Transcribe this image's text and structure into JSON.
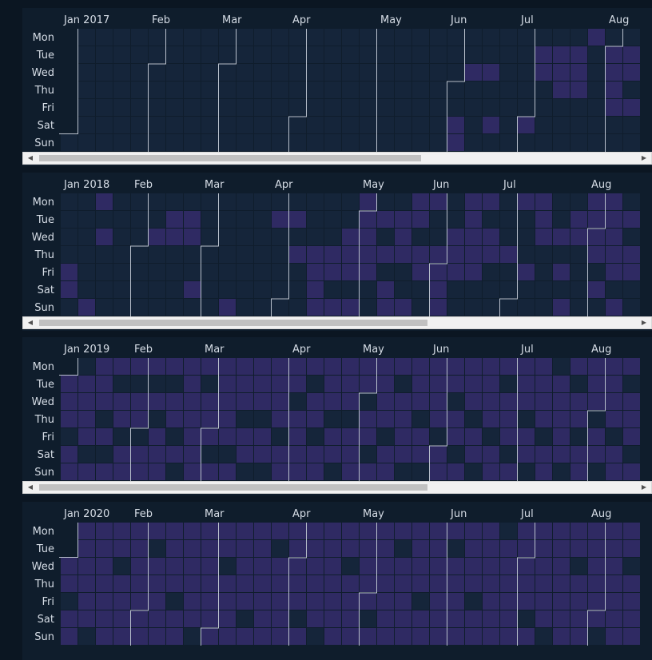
{
  "weekday_labels": [
    "Mon",
    "Tue",
    "Wed",
    "Thu",
    "Fri",
    "Sat",
    "Sun"
  ],
  "colors": {
    "empty": "#15253a",
    "filled": "#2f2a63",
    "background": "#0f1d2c",
    "boundary": "#b8c0cc"
  },
  "icons": {
    "scroll_left": "triangle-left",
    "scroll_right": "triangle-right"
  },
  "chart_data": [
    {
      "type": "heatmap",
      "year": 2017,
      "start_weekday": 6,
      "visible_weeks": 33,
      "month_labels": [
        "Jan 2017",
        "Feb",
        "Mar",
        "Apr",
        "May",
        "Jun",
        "Jul",
        "Aug"
      ],
      "active_dates": [
        "2017-06-03",
        "2017-06-04",
        "2017-06-07",
        "2017-06-14",
        "2017-06-17",
        "2017-07-01",
        "2017-07-04",
        "2017-07-05",
        "2017-07-11",
        "2017-07-12",
        "2017-07-13",
        "2017-07-18",
        "2017-07-19",
        "2017-07-20",
        "2017-07-24",
        "2017-08-01",
        "2017-08-02",
        "2017-08-03",
        "2017-08-04",
        "2017-08-08",
        "2017-08-09",
        "2017-08-11",
        "2017-08-15",
        "2017-08-16",
        "2017-08-18"
      ]
    },
    {
      "type": "heatmap",
      "year": 2018,
      "start_weekday": 0,
      "visible_weeks": 33,
      "month_labels": [
        "Jan 2018",
        "Feb",
        "Mar",
        "Apr",
        "May",
        "Jun",
        "Jul",
        "Aug"
      ],
      "active_dates": [
        "2018-01-05",
        "2018-01-06",
        "2018-01-14",
        "2018-01-15",
        "2018-01-17",
        "2018-02-07",
        "2018-02-13",
        "2018-02-14",
        "2018-02-20",
        "2018-02-21",
        "2018-02-24",
        "2018-03-11",
        "2018-03-27",
        "2018-04-03",
        "2018-04-05",
        "2018-04-12",
        "2018-04-13",
        "2018-04-14",
        "2018-04-15",
        "2018-04-19",
        "2018-04-20",
        "2018-04-22",
        "2018-04-25",
        "2018-04-26",
        "2018-04-27",
        "2018-04-29",
        "2018-04-30",
        "2018-05-01",
        "2018-05-02",
        "2018-05-03",
        "2018-05-04",
        "2018-05-08",
        "2018-05-10",
        "2018-05-12",
        "2018-05-13",
        "2018-05-15",
        "2018-05-16",
        "2018-05-17",
        "2018-05-20",
        "2018-05-21",
        "2018-05-22",
        "2018-05-24",
        "2018-05-25",
        "2018-05-28",
        "2018-05-31",
        "2018-06-01",
        "2018-06-02",
        "2018-06-03",
        "2018-06-06",
        "2018-06-07",
        "2018-06-08",
        "2018-06-11",
        "2018-06-12",
        "2018-06-13",
        "2018-06-14",
        "2018-06-15",
        "2018-06-18",
        "2018-06-20",
        "2018-06-21",
        "2018-06-28",
        "2018-07-02",
        "2018-07-06",
        "2018-07-09",
        "2018-07-10",
        "2018-07-11",
        "2018-07-18",
        "2018-07-20",
        "2018-07-22",
        "2018-07-24",
        "2018-07-25",
        "2018-07-30",
        "2018-07-31",
        "2018-08-01",
        "2018-08-02",
        "2018-08-04",
        "2018-08-06",
        "2018-08-07",
        "2018-08-08",
        "2018-08-09",
        "2018-08-10",
        "2018-08-12",
        "2018-08-14",
        "2018-08-16",
        "2018-08-17",
        "2018-08-20",
        "2018-08-21",
        "2018-08-23"
      ]
    },
    {
      "type": "heatmap",
      "year": 2019,
      "start_weekday": 1,
      "visible_weeks": 33,
      "month_labels": [
        "Jan 2019",
        "Feb",
        "Mar",
        "Apr",
        "May",
        "Jun",
        "Jul",
        "Aug"
      ],
      "active_dates": [
        "2019-01-01",
        "2019-01-02",
        "2019-01-03",
        "2019-01-05",
        "2019-01-06",
        "2019-01-08",
        "2019-01-09",
        "2019-01-10",
        "2019-01-11",
        "2019-01-13",
        "2019-01-14",
        "2019-01-15",
        "2019-01-16",
        "2019-01-18",
        "2019-01-20",
        "2019-01-21",
        "2019-01-23",
        "2019-01-24",
        "2019-01-26",
        "2019-01-27",
        "2019-01-28",
        "2019-01-30",
        "2019-01-31",
        "2019-02-02",
        "2019-02-03",
        "2019-02-04",
        "2019-02-06",
        "2019-02-08",
        "2019-02-09",
        "2019-02-10",
        "2019-02-11",
        "2019-02-13",
        "2019-02-14",
        "2019-02-16",
        "2019-02-18",
        "2019-02-19",
        "2019-02-20",
        "2019-02-21",
        "2019-02-22",
        "2019-02-23",
        "2019-02-24",
        "2019-02-25",
        "2019-02-27",
        "2019-02-28",
        "2019-03-01",
        "2019-03-03",
        "2019-03-04",
        "2019-03-05",
        "2019-03-06",
        "2019-03-07",
        "2019-03-08",
        "2019-03-10",
        "2019-03-11",
        "2019-03-12",
        "2019-03-13",
        "2019-03-15",
        "2019-03-16",
        "2019-03-18",
        "2019-03-19",
        "2019-03-20",
        "2019-03-22",
        "2019-03-23",
        "2019-03-25",
        "2019-03-26",
        "2019-03-27",
        "2019-03-28",
        "2019-03-30",
        "2019-03-31",
        "2019-04-01",
        "2019-04-02",
        "2019-04-04",
        "2019-04-05",
        "2019-04-06",
        "2019-04-07",
        "2019-04-08",
        "2019-04-10",
        "2019-04-11",
        "2019-04-13",
        "2019-04-14",
        "2019-04-15",
        "2019-04-16",
        "2019-04-17",
        "2019-04-19",
        "2019-04-20",
        "2019-04-22",
        "2019-04-23",
        "2019-04-24",
        "2019-04-26",
        "2019-04-27",
        "2019-04-28",
        "2019-04-29",
        "2019-04-30",
        "2019-05-02",
        "2019-05-03",
        "2019-05-05",
        "2019-05-06",
        "2019-05-07",
        "2019-05-08",
        "2019-05-09",
        "2019-05-11",
        "2019-05-12",
        "2019-05-13",
        "2019-05-15",
        "2019-05-16",
        "2019-05-17",
        "2019-05-18",
        "2019-05-20",
        "2019-05-21",
        "2019-05-22",
        "2019-05-24",
        "2019-05-25",
        "2019-05-27",
        "2019-05-28",
        "2019-05-29",
        "2019-05-30",
        "2019-06-01",
        "2019-06-02",
        "2019-06-03",
        "2019-06-04",
        "2019-06-06",
        "2019-06-07",
        "2019-06-09",
        "2019-06-10",
        "2019-06-11",
        "2019-06-12",
        "2019-06-14",
        "2019-06-15",
        "2019-06-17",
        "2019-06-18",
        "2019-06-19",
        "2019-06-20",
        "2019-06-22",
        "2019-06-23",
        "2019-06-24",
        "2019-06-26",
        "2019-06-27",
        "2019-06-28",
        "2019-06-30",
        "2019-07-01",
        "2019-07-02",
        "2019-07-03",
        "2019-07-05",
        "2019-07-06",
        "2019-07-08",
        "2019-07-09",
        "2019-07-10",
        "2019-07-11",
        "2019-07-13",
        "2019-07-14",
        "2019-07-16",
        "2019-07-17",
        "2019-07-18",
        "2019-07-19",
        "2019-07-20",
        "2019-07-22",
        "2019-07-24",
        "2019-07-25",
        "2019-07-27",
        "2019-07-28",
        "2019-07-29",
        "2019-07-30",
        "2019-07-31",
        "2019-08-02",
        "2019-08-03",
        "2019-08-05",
        "2019-08-06",
        "2019-08-07",
        "2019-08-08",
        "2019-08-10",
        "2019-08-11",
        "2019-08-12",
        "2019-08-14",
        "2019-08-15",
        "2019-08-16",
        "2019-08-18"
      ]
    },
    {
      "type": "heatmap",
      "year": 2020,
      "start_weekday": 2,
      "visible_weeks": 33,
      "month_labels": [
        "Jan 2020",
        "Feb",
        "Mar",
        "Apr",
        "May",
        "Jun",
        "Jul",
        "Aug"
      ],
      "active_dates": [
        "2020-01-01",
        "2020-01-02",
        "2020-01-04",
        "2020-01-05",
        "2020-01-06",
        "2020-01-07",
        "2020-01-08",
        "2020-01-09",
        "2020-01-10",
        "2020-01-11",
        "2020-01-13",
        "2020-01-14",
        "2020-01-15",
        "2020-01-16",
        "2020-01-17",
        "2020-01-18",
        "2020-01-19",
        "2020-01-20",
        "2020-01-21",
        "2020-01-23",
        "2020-01-24",
        "2020-01-25",
        "2020-01-26",
        "2020-01-27",
        "2020-01-28",
        "2020-01-29",
        "2020-01-30",
        "2020-01-31",
        "2020-02-01",
        "2020-02-02",
        "2020-02-03",
        "2020-02-05",
        "2020-02-06",
        "2020-02-07",
        "2020-02-08",
        "2020-02-09",
        "2020-02-10",
        "2020-02-11",
        "2020-02-12",
        "2020-02-13",
        "2020-02-15",
        "2020-02-16",
        "2020-02-17",
        "2020-02-18",
        "2020-02-19",
        "2020-02-20",
        "2020-02-21",
        "2020-02-22",
        "2020-02-24",
        "2020-02-25",
        "2020-02-26",
        "2020-02-27",
        "2020-02-28",
        "2020-02-29",
        "2020-03-01",
        "2020-03-02",
        "2020-03-03",
        "2020-03-05",
        "2020-03-06",
        "2020-03-07",
        "2020-03-08",
        "2020-03-09",
        "2020-03-10",
        "2020-03-11",
        "2020-03-12",
        "2020-03-13",
        "2020-03-15",
        "2020-03-16",
        "2020-03-17",
        "2020-03-18",
        "2020-03-19",
        "2020-03-20",
        "2020-03-21",
        "2020-03-22",
        "2020-03-23",
        "2020-03-25",
        "2020-03-26",
        "2020-03-27",
        "2020-03-28",
        "2020-03-29",
        "2020-03-30",
        "2020-03-31",
        "2020-04-01",
        "2020-04-02",
        "2020-04-03",
        "2020-04-05",
        "2020-04-06",
        "2020-04-07",
        "2020-04-08",
        "2020-04-09",
        "2020-04-10",
        "2020-04-11",
        "2020-04-13",
        "2020-04-14",
        "2020-04-15",
        "2020-04-16",
        "2020-04-17",
        "2020-04-18",
        "2020-04-19",
        "2020-04-20",
        "2020-04-21",
        "2020-04-23",
        "2020-04-24",
        "2020-04-25",
        "2020-04-26",
        "2020-04-27",
        "2020-04-28",
        "2020-04-29",
        "2020-04-30",
        "2020-05-01",
        "2020-05-03",
        "2020-05-04",
        "2020-05-05",
        "2020-05-06",
        "2020-05-07",
        "2020-05-08",
        "2020-05-09",
        "2020-05-10",
        "2020-05-11",
        "2020-05-13",
        "2020-05-14",
        "2020-05-15",
        "2020-05-16",
        "2020-05-17",
        "2020-05-18",
        "2020-05-19",
        "2020-05-20",
        "2020-05-21",
        "2020-05-23",
        "2020-05-24",
        "2020-05-25",
        "2020-05-26",
        "2020-05-27",
        "2020-05-28",
        "2020-05-29",
        "2020-05-30",
        "2020-05-31",
        "2020-06-01",
        "2020-06-03",
        "2020-06-04",
        "2020-06-05",
        "2020-06-06",
        "2020-06-07",
        "2020-06-08",
        "2020-06-09",
        "2020-06-10",
        "2020-06-11",
        "2020-06-13",
        "2020-06-14",
        "2020-06-15",
        "2020-06-16",
        "2020-06-17",
        "2020-06-18",
        "2020-06-19",
        "2020-06-20",
        "2020-06-21",
        "2020-06-23",
        "2020-06-24",
        "2020-06-25",
        "2020-06-26",
        "2020-06-27",
        "2020-06-28",
        "2020-06-29",
        "2020-06-30",
        "2020-07-01",
        "2020-07-02",
        "2020-07-03",
        "2020-07-05",
        "2020-07-06",
        "2020-07-07",
        "2020-07-08",
        "2020-07-09",
        "2020-07-10",
        "2020-07-11",
        "2020-07-13",
        "2020-07-14",
        "2020-07-15",
        "2020-07-16",
        "2020-07-17",
        "2020-07-18",
        "2020-07-19",
        "2020-07-20",
        "2020-07-21",
        "2020-07-23",
        "2020-07-24",
        "2020-07-25",
        "2020-07-26",
        "2020-07-27",
        "2020-07-28",
        "2020-07-29",
        "2020-07-30",
        "2020-07-31",
        "2020-08-01",
        "2020-08-03",
        "2020-08-04",
        "2020-08-05",
        "2020-08-06",
        "2020-08-07",
        "2020-08-08",
        "2020-08-09",
        "2020-08-10",
        "2020-08-11",
        "2020-08-13",
        "2020-08-14",
        "2020-08-15",
        "2020-08-16",
        "2020-08-17",
        "2020-08-18",
        "2020-08-19"
      ]
    }
  ]
}
